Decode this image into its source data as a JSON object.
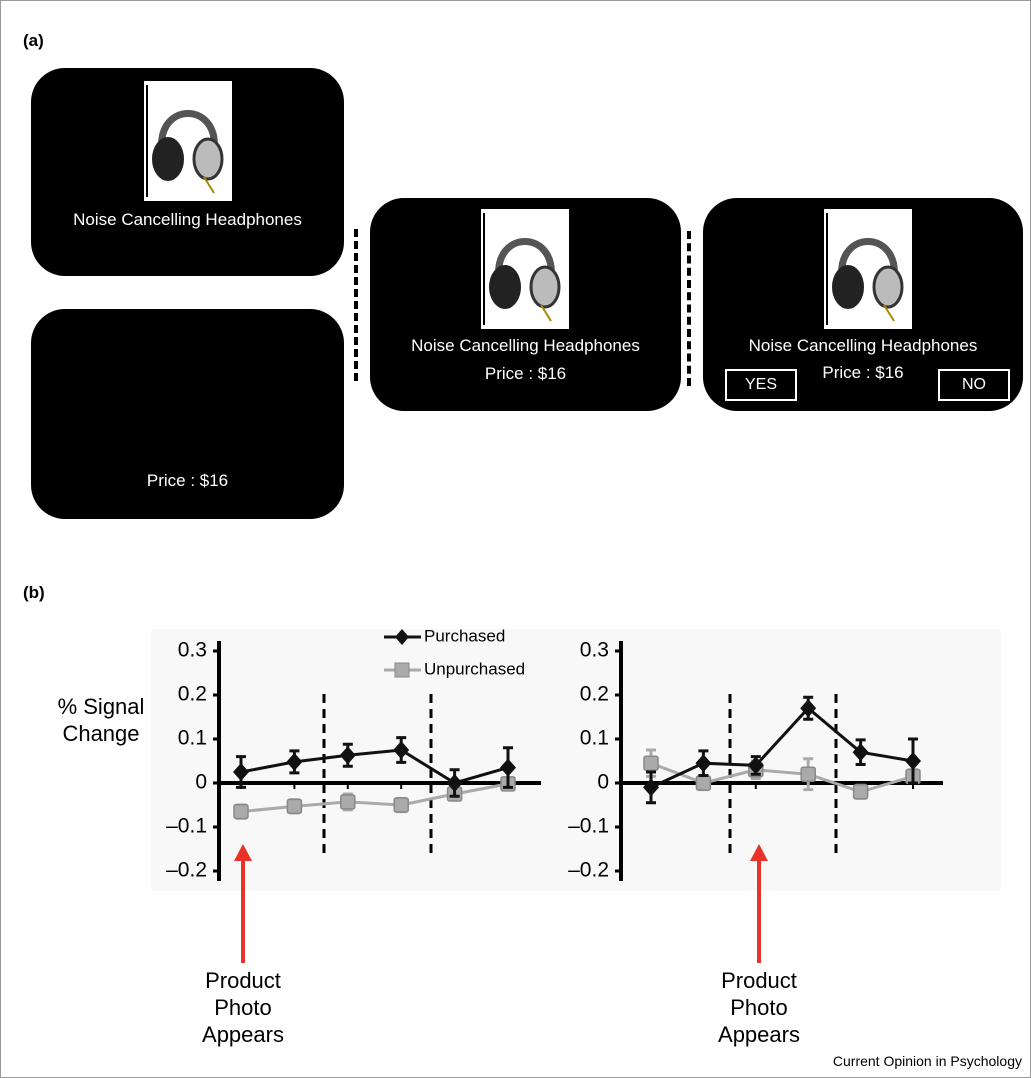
{
  "panel_a": {
    "label": "(a)",
    "screens": [
      {
        "title": "Noise Cancelling Headphones"
      },
      {
        "price": "Price : $16"
      },
      {
        "title": "Noise Cancelling Headphones",
        "price": "Price : $16"
      },
      {
        "title": "Noise Cancelling Headphones",
        "price": "Price : $16",
        "yes": "YES",
        "no": "NO"
      }
    ]
  },
  "panel_b": {
    "label": "(b)"
  },
  "chart_data": [
    {
      "type": "line",
      "y_label": "% Signal Change",
      "legend": true,
      "categories": [
        null,
        null,
        null,
        null,
        null,
        null
      ],
      "ylim": [
        -0.2,
        0.3
      ],
      "yticks": [
        {
          "value": -0.2,
          "label": "–0.2"
        },
        {
          "value": -0.1,
          "label": "–0.1"
        },
        0,
        0.1,
        0.2,
        0.3
      ],
      "annotation": "Product Photo Appears",
      "series": [
        {
          "name": "Purchased",
          "color": "#111111",
          "values": [
            0.025,
            0.048,
            0.063,
            0.075,
            0.0,
            0.035
          ],
          "errors": [
            0.035,
            0.025,
            0.025,
            0.028,
            0.03,
            0.045
          ]
        },
        {
          "name": "Unpurchased",
          "color": "#aaaaaa",
          "values": [
            -0.065,
            -0.053,
            -0.043,
            -0.05,
            -0.025,
            -0.002
          ],
          "errors": [
            0.015,
            0.015,
            0.018,
            0.015,
            0.012,
            0.012
          ]
        }
      ]
    },
    {
      "type": "line",
      "legend": false,
      "categories": [
        null,
        null,
        null,
        null,
        null,
        null
      ],
      "ylim": [
        -0.2,
        0.3
      ],
      "yticks": [
        {
          "value": -0.2,
          "label": "–0.2"
        },
        {
          "value": -0.1,
          "label": "–0.1"
        },
        0,
        0.1,
        0.2,
        0.3
      ],
      "annotation": "Product Photo Appears",
      "series": [
        {
          "name": "Purchased",
          "color": "#111111",
          "values": [
            -0.01,
            0.045,
            0.04,
            0.17,
            0.07,
            0.05
          ],
          "errors": [
            0.035,
            0.028,
            0.02,
            0.025,
            0.028,
            0.05
          ]
        },
        {
          "name": "Unpurchased",
          "color": "#aaaaaa",
          "values": [
            0.045,
            0.0,
            0.03,
            0.02,
            -0.02,
            0.015
          ],
          "errors": [
            0.03,
            0.015,
            0.02,
            0.035,
            0.015,
            0.015
          ]
        }
      ]
    }
  ],
  "footer": "Current Opinion in Psychology"
}
